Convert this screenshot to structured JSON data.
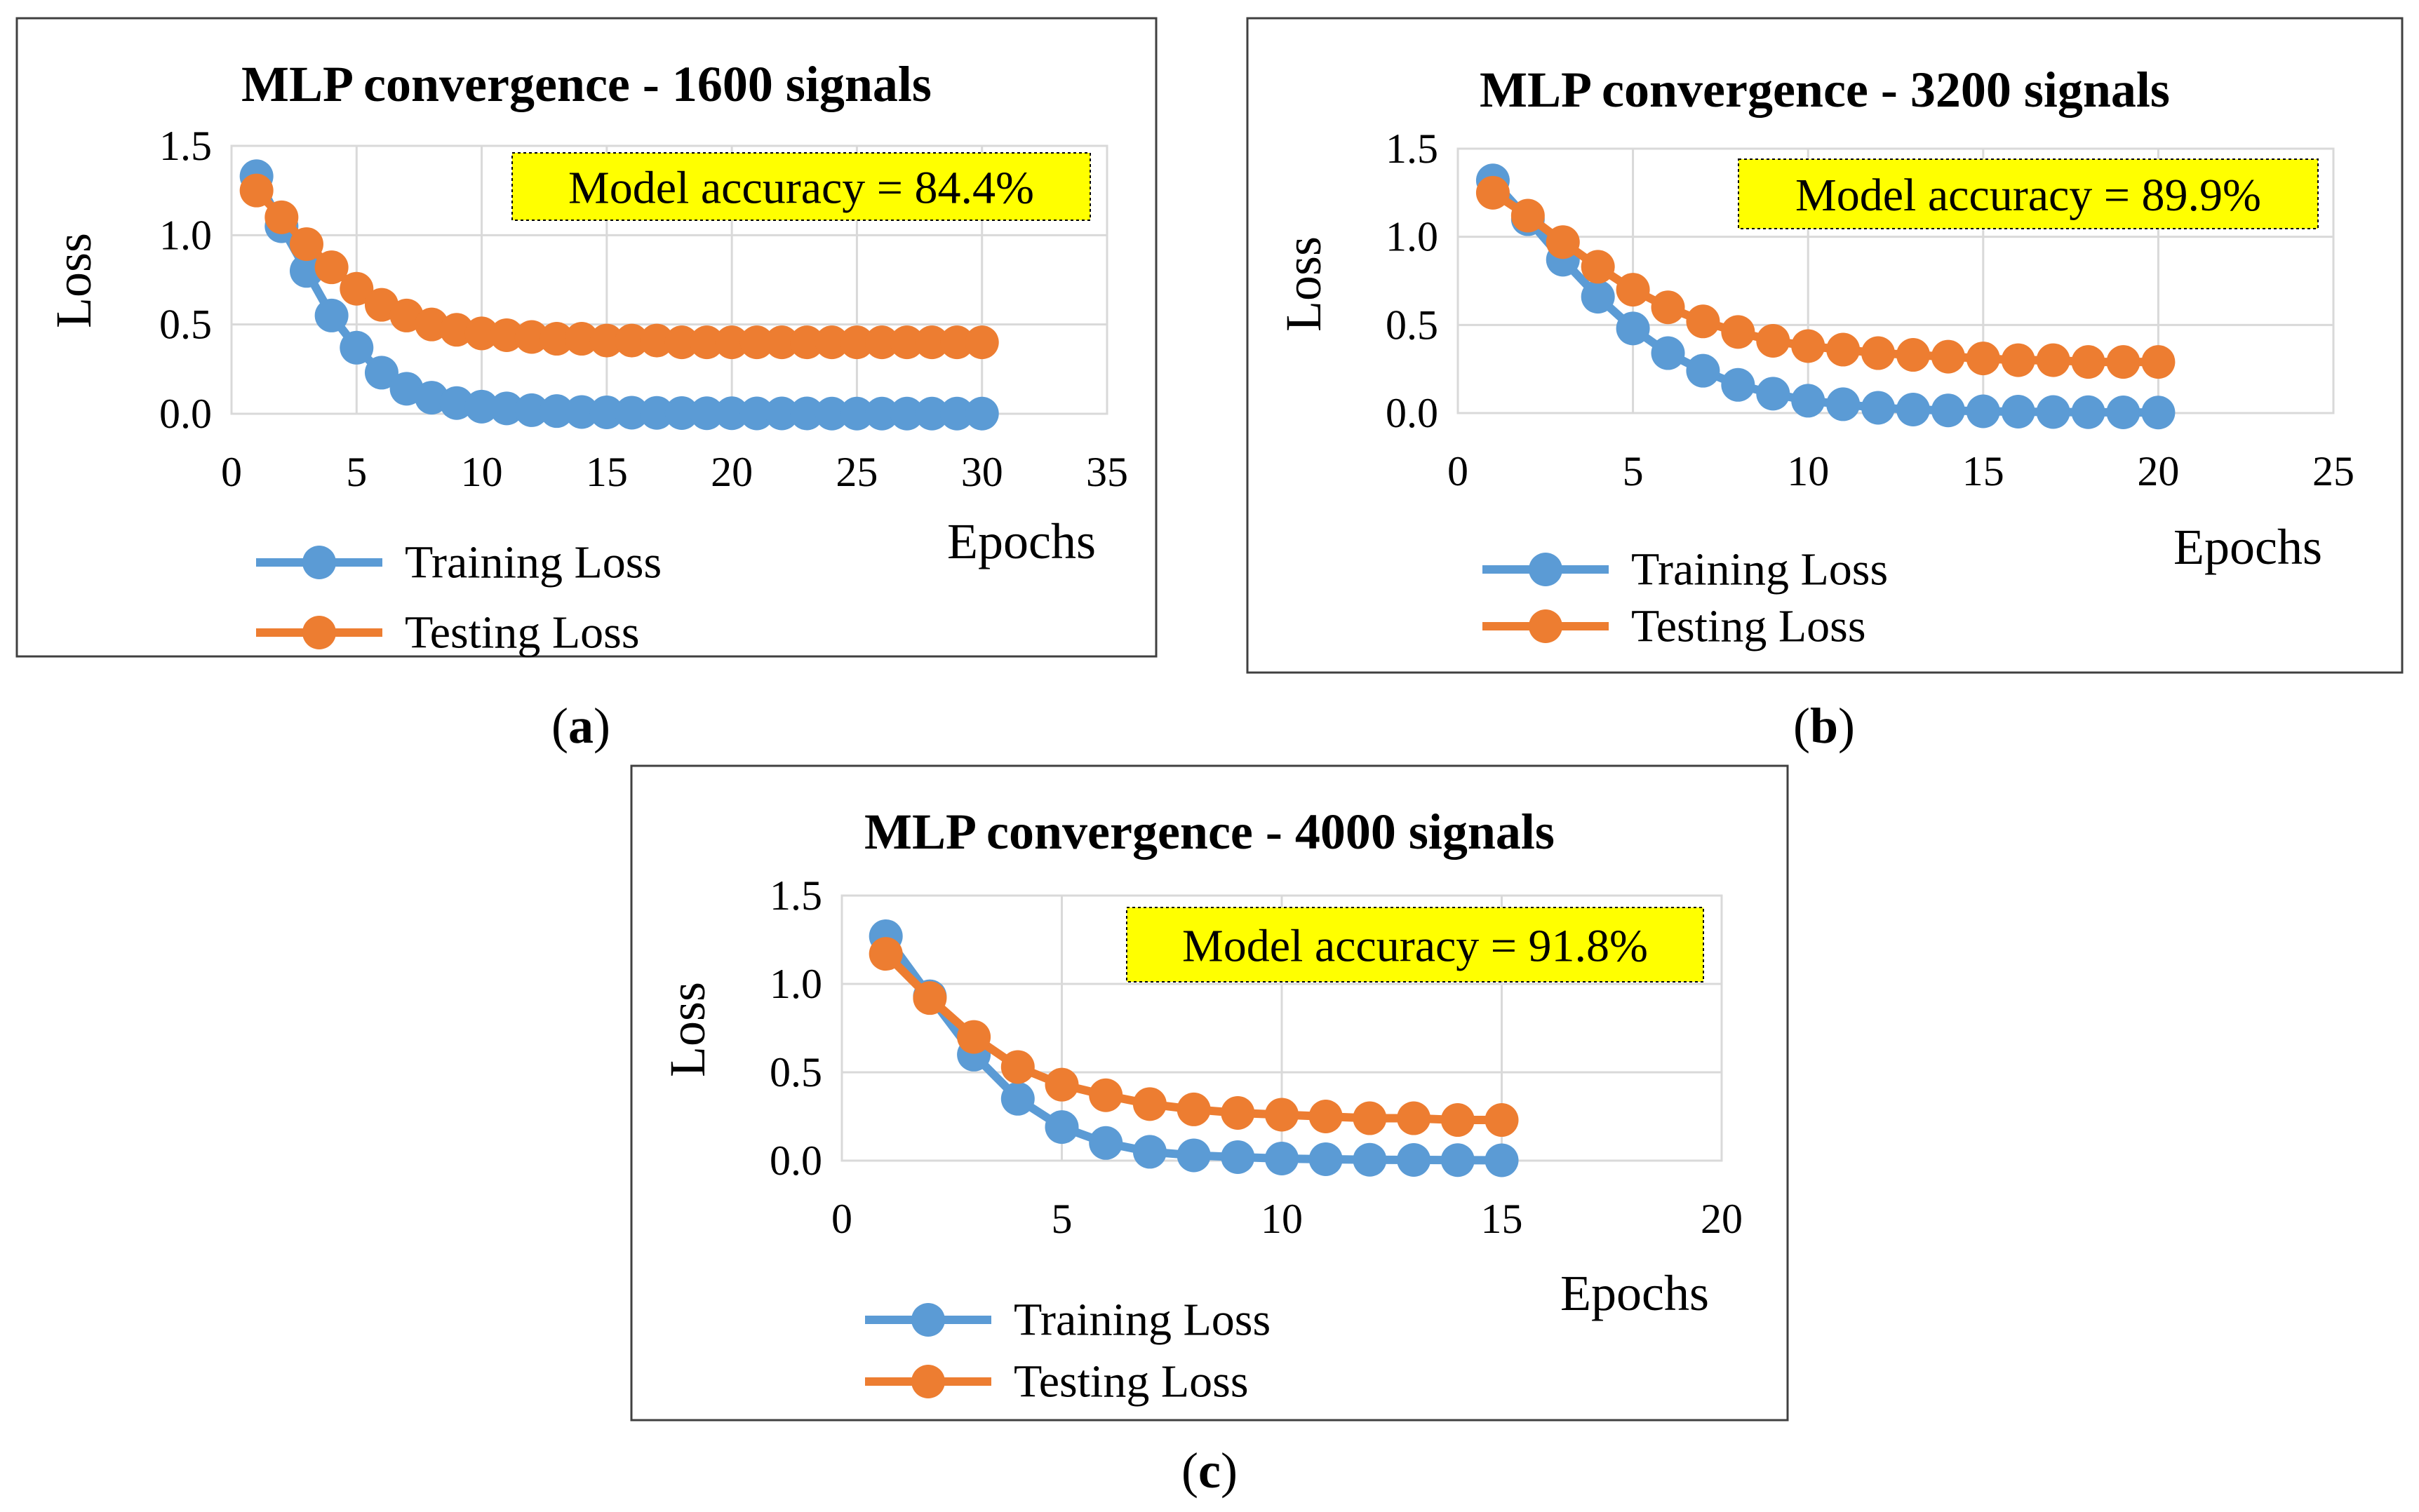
{
  "colors": {
    "training": "#5B9BD5",
    "testing": "#ED7D31",
    "grid": "#D9D9D9",
    "frame": "#404040",
    "annotation_bg": "#FFFF00",
    "text": "#000000"
  },
  "chart_data": [
    {
      "panel": "(a)",
      "panel_letter": "a",
      "type": "line",
      "title": "MLP convergence - 1600 signals",
      "xlabel": "Epochs",
      "ylabel": "Loss",
      "xlim": [
        0,
        35
      ],
      "ylim": [
        0,
        1.5
      ],
      "xticks": [
        "0",
        "5",
        "10",
        "15",
        "20",
        "25",
        "30",
        "35"
      ],
      "yticks": [
        "0.0",
        "0.5",
        "1.0",
        "1.5"
      ],
      "grid": true,
      "legend_position": "bottom-left",
      "annotation": "Model accuracy = 84.4%",
      "x": [
        1,
        2,
        3,
        4,
        5,
        6,
        7,
        8,
        9,
        10,
        11,
        12,
        13,
        14,
        15,
        16,
        17,
        18,
        19,
        20,
        21,
        22,
        23,
        24,
        25,
        26,
        27,
        28,
        29,
        30
      ],
      "series": [
        {
          "name": "Training Loss",
          "color_key": "training",
          "values": [
            1.33,
            1.05,
            0.8,
            0.55,
            0.37,
            0.23,
            0.14,
            0.09,
            0.06,
            0.04,
            0.03,
            0.02,
            0.015,
            0.01,
            0.008,
            0.006,
            0.005,
            0.004,
            0.003,
            0.003,
            0.002,
            0.002,
            0.002,
            0.001,
            0.001,
            0.001,
            0.001,
            0.001,
            0.001,
            0.001
          ]
        },
        {
          "name": "Testing Loss",
          "color_key": "testing",
          "values": [
            1.25,
            1.1,
            0.95,
            0.82,
            0.7,
            0.61,
            0.55,
            0.5,
            0.47,
            0.45,
            0.44,
            0.43,
            0.42,
            0.42,
            0.41,
            0.41,
            0.41,
            0.4,
            0.4,
            0.4,
            0.4,
            0.4,
            0.4,
            0.4,
            0.4,
            0.4,
            0.4,
            0.4,
            0.4,
            0.4
          ]
        }
      ]
    },
    {
      "panel": "(b)",
      "panel_letter": "b",
      "type": "line",
      "title": "MLP convergence - 3200 signals",
      "xlabel": "Epochs",
      "ylabel": "Loss",
      "xlim": [
        0,
        25
      ],
      "ylim": [
        0,
        1.5
      ],
      "xticks": [
        "0",
        "5",
        "10",
        "15",
        "20",
        "25"
      ],
      "yticks": [
        "0.0",
        "0.5",
        "1.0",
        "1.5"
      ],
      "grid": true,
      "legend_position": "bottom-left",
      "annotation": "Model accuracy = 89.9%",
      "x": [
        1,
        2,
        3,
        4,
        5,
        6,
        7,
        8,
        9,
        10,
        11,
        12,
        13,
        14,
        15,
        16,
        17,
        18,
        19,
        20
      ],
      "series": [
        {
          "name": "Training Loss",
          "color_key": "training",
          "values": [
            1.32,
            1.1,
            0.87,
            0.66,
            0.48,
            0.34,
            0.24,
            0.16,
            0.11,
            0.07,
            0.05,
            0.03,
            0.02,
            0.015,
            0.01,
            0.008,
            0.006,
            0.005,
            0.004,
            0.003
          ]
        },
        {
          "name": "Testing Loss",
          "color_key": "testing",
          "values": [
            1.25,
            1.12,
            0.97,
            0.83,
            0.7,
            0.6,
            0.52,
            0.46,
            0.41,
            0.38,
            0.36,
            0.34,
            0.33,
            0.32,
            0.31,
            0.3,
            0.3,
            0.29,
            0.29,
            0.29
          ]
        }
      ]
    },
    {
      "panel": "(c)",
      "panel_letter": "c",
      "type": "line",
      "title": "MLP convergence - 4000 signals",
      "xlabel": "Epochs",
      "ylabel": "Loss",
      "xlim": [
        0,
        20
      ],
      "ylim": [
        0,
        1.5
      ],
      "xticks": [
        "0",
        "5",
        "10",
        "15",
        "20"
      ],
      "yticks": [
        "0.0",
        "0.5",
        "1.0",
        "1.5"
      ],
      "grid": true,
      "legend_position": "bottom-left",
      "annotation": "Model accuracy = 91.8%",
      "x": [
        1,
        2,
        3,
        4,
        5,
        6,
        7,
        8,
        9,
        10,
        11,
        12,
        13,
        14,
        15
      ],
      "series": [
        {
          "name": "Training Loss",
          "color_key": "training",
          "values": [
            1.27,
            0.93,
            0.6,
            0.35,
            0.19,
            0.1,
            0.05,
            0.03,
            0.02,
            0.012,
            0.008,
            0.005,
            0.004,
            0.003,
            0.002
          ]
        },
        {
          "name": "Testing Loss",
          "color_key": "testing",
          "values": [
            1.17,
            0.92,
            0.7,
            0.53,
            0.43,
            0.37,
            0.32,
            0.29,
            0.27,
            0.26,
            0.25,
            0.24,
            0.24,
            0.23,
            0.23
          ]
        }
      ]
    }
  ]
}
